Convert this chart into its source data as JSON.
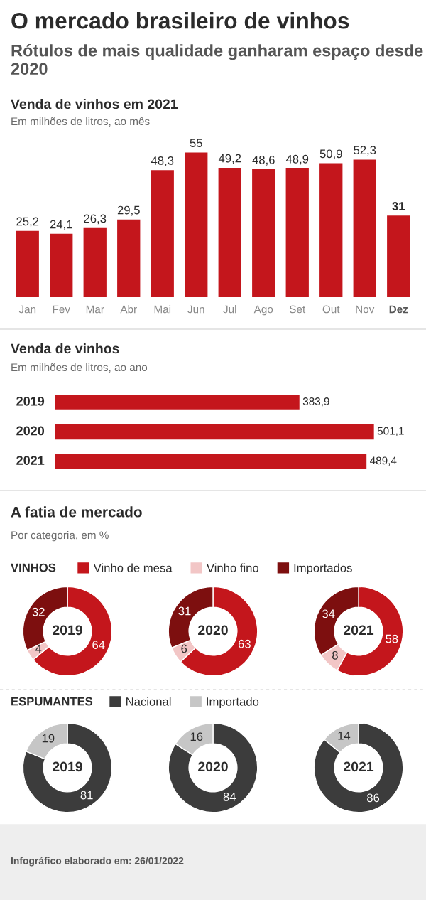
{
  "chart_data": [
    {
      "type": "other",
      "title": "O mercado brasileiro de vinhos",
      "subtitle": "Rótulos de mais qualidade ganharam espaço desde 2020"
    },
    {
      "type": "bar",
      "title": "Venda de vinhos em 2021",
      "subtitle": "Em milhões de litros, ao mês",
      "categories": [
        "Jan",
        "Fev",
        "Mar",
        "Abr",
        "Mai",
        "Jun",
        "Jul",
        "Ago",
        "Set",
        "Out",
        "Nov",
        "Dez"
      ],
      "values": [
        25.2,
        24.1,
        26.3,
        29.5,
        48.3,
        55,
        49.2,
        48.6,
        48.9,
        50.9,
        52.3,
        31
      ],
      "value_labels": [
        "25,2",
        "24,1",
        "26,3",
        "29,5",
        "48,3",
        "55",
        "49,2",
        "48,6",
        "48,9",
        "50,9",
        "52,3",
        "31"
      ],
      "color": "#c4161c"
    },
    {
      "type": "bar",
      "orientation": "horizontal",
      "title": "Venda de vinhos",
      "subtitle": "Em milhões de litros, ao ano",
      "categories": [
        "2019",
        "2020",
        "2021"
      ],
      "values": [
        383.9,
        501.1,
        489.4
      ],
      "value_labels": [
        "383,9",
        "501,1",
        "489,4"
      ],
      "color": "#c4161c"
    },
    {
      "type": "other",
      "title": "A fatia de mercado",
      "subtitle": "Por categoria, em %"
    },
    {
      "type": "donut",
      "title": "2019",
      "legend_title": "VINHOS",
      "legend": "top",
      "categories": [
        "Vinho de mesa",
        "Vinho fino",
        "Importados"
      ],
      "values": [
        64,
        4,
        32
      ],
      "colors": [
        "#c4161c",
        "#f2c6c6",
        "#7d0f0f"
      ],
      "data_labels": true
    },
    {
      "type": "donut",
      "title": "2020",
      "values": [
        63,
        6,
        31
      ],
      "colors": [
        "#c4161c",
        "#f2c6c6",
        "#7d0f0f"
      ],
      "data_labels": true
    },
    {
      "type": "donut",
      "title": "2021",
      "values": [
        58,
        8,
        34
      ],
      "colors": [
        "#c4161c",
        "#f2c6c6",
        "#7d0f0f"
      ],
      "data_labels": true
    },
    {
      "type": "donut",
      "title": "2019",
      "legend_title": "ESPUMANTES",
      "legend": "top",
      "categories": [
        "Nacional",
        "Importado"
      ],
      "values": [
        81,
        19
      ],
      "colors": [
        "#3c3c3c",
        "#c6c6c6"
      ],
      "data_labels": true
    },
    {
      "type": "donut",
      "title": "2020",
      "values": [
        84,
        16
      ],
      "colors": [
        "#3c3c3c",
        "#c6c6c6"
      ],
      "data_labels": true
    },
    {
      "type": "donut",
      "title": "2021",
      "values": [
        86,
        14
      ],
      "colors": [
        "#3c3c3c",
        "#c6c6c6"
      ],
      "data_labels": true
    },
    {
      "type": "other",
      "annotations": [
        "Infográfico elaborado em: 26/01/2022"
      ]
    }
  ]
}
